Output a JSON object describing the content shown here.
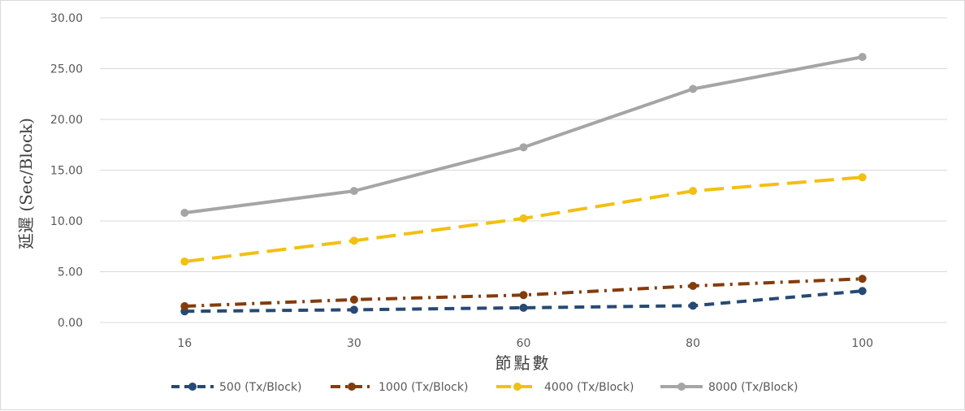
{
  "chart_data": {
    "type": "line",
    "xlabel": "節點數",
    "ylabel": "延遲 (Sec/Block)",
    "categories": [
      "16",
      "30",
      "60",
      "80",
      "100"
    ],
    "ylim": [
      0,
      30
    ],
    "yticks": [
      "0.00",
      "5.00",
      "10.00",
      "15.00",
      "20.00",
      "25.00",
      "30.00"
    ],
    "grid": true,
    "legend_position": "bottom",
    "series": [
      {
        "name": "500 (Tx/Block)",
        "color": "#264a73",
        "dash": "dash",
        "values": [
          1.1,
          1.25,
          1.45,
          1.65,
          3.1
        ]
      },
      {
        "name": "1000 (Tx/Block)",
        "color": "#843c0c",
        "dash": "dashdot",
        "values": [
          1.6,
          2.25,
          2.7,
          3.6,
          4.3
        ]
      },
      {
        "name": "4000 (Tx/Block)",
        "color": "#f2c012",
        "dash": "longdash",
        "values": [
          6.0,
          8.05,
          10.25,
          12.95,
          14.3
        ]
      },
      {
        "name": "8000 (Tx/Block)",
        "color": "#a5a5a5",
        "dash": "solid",
        "values": [
          10.8,
          12.95,
          17.25,
          23.0,
          26.15
        ]
      }
    ]
  }
}
